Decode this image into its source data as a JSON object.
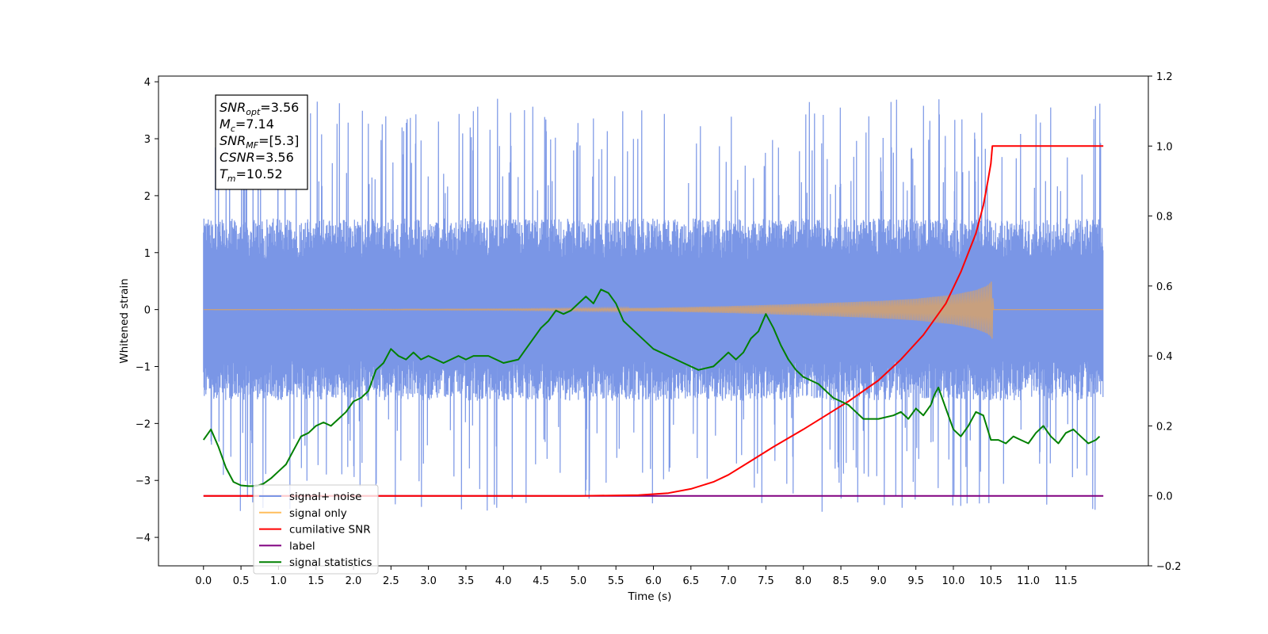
{
  "chart_data": {
    "type": "line",
    "title": "",
    "xlabel": "Time (s)",
    "ylabel": "Whitened strain",
    "ylabel_right": "",
    "xlim": [
      -0.6,
      12.6
    ],
    "ylim": [
      -4.5,
      4.1
    ],
    "ylim_right": [
      -0.2,
      1.2
    ],
    "x_ticks": [
      "0.0",
      "0.5",
      "1.0",
      "1.5",
      "2.0",
      "2.5",
      "3.0",
      "3.5",
      "4.0",
      "4.5",
      "5.0",
      "5.5",
      "6.0",
      "6.5",
      "7.0",
      "7.5",
      "8.0",
      "8.5",
      "9.0",
      "9.5",
      "10.0",
      "10.5",
      "11.0",
      "11.5"
    ],
    "y_ticks_left": [
      "−4",
      "−3",
      "−2",
      "−1",
      "0",
      "1",
      "2",
      "3",
      "4"
    ],
    "y_ticks_right": [
      "−0.2",
      "0.0",
      "0.2",
      "0.4",
      "0.6",
      "0.8",
      "1.0",
      "1.2"
    ],
    "grid": false,
    "legend_position": "lower-left",
    "info_box": {
      "lines": [
        {
          "label": "SNR",
          "sub": "opt",
          "value": "=3.56"
        },
        {
          "label": "M",
          "sub": "c",
          "value": "=7.14"
        },
        {
          "label": "SNR",
          "sub": "MF",
          "value": "=[5.3]"
        },
        {
          "label": "CSNR",
          "sub": "",
          "value": "=3.56"
        },
        {
          "label": "T",
          "sub": "m",
          "value": "=10.52"
        }
      ]
    },
    "series": [
      {
        "name": "signal+ noise",
        "color": "#7a96e6",
        "axis": "left",
        "description_stats": {
          "x_start": 0.0,
          "x_end": 12.0,
          "typical_min": -1.6,
          "typical_max": 1.6,
          "peak_min": -3.55,
          "peak_max": 3.72
        }
      },
      {
        "name": "signal only",
        "color": "#ffbe5c",
        "axis": "left",
        "envelope": {
          "x": [
            0.0,
            4.0,
            6.0,
            7.0,
            8.0,
            9.0,
            9.5,
            10.0,
            10.3,
            10.45,
            10.5,
            10.52,
            10.53
          ],
          "amplitude": [
            0.0,
            0.01,
            0.03,
            0.06,
            0.1,
            0.15,
            0.19,
            0.26,
            0.34,
            0.42,
            0.48,
            0.52,
            0.0
          ]
        }
      },
      {
        "name": "cumilative SNR",
        "color": "#ff0000",
        "axis": "right",
        "x": [
          0.0,
          5.0,
          5.8,
          6.2,
          6.5,
          6.8,
          7.0,
          7.3,
          7.6,
          8.0,
          8.3,
          8.6,
          9.0,
          9.3,
          9.6,
          9.9,
          10.1,
          10.3,
          10.4,
          10.46,
          10.5,
          10.52,
          12.0
        ],
        "values": [
          0.0,
          0.0,
          0.002,
          0.008,
          0.02,
          0.04,
          0.06,
          0.1,
          0.14,
          0.19,
          0.23,
          0.27,
          0.33,
          0.39,
          0.46,
          0.55,
          0.64,
          0.75,
          0.83,
          0.9,
          0.95,
          1.0,
          1.0
        ]
      },
      {
        "name": "label",
        "color": "#800080",
        "axis": "right",
        "x": [
          0.0,
          12.0
        ],
        "values": [
          0.0,
          0.0
        ]
      },
      {
        "name": "signal statistics",
        "color": "#008000",
        "axis": "right",
        "x": [
          0.0,
          0.1,
          0.2,
          0.3,
          0.4,
          0.5,
          0.6,
          0.7,
          0.8,
          0.9,
          1.0,
          1.1,
          1.2,
          1.3,
          1.4,
          1.5,
          1.6,
          1.7,
          1.8,
          1.9,
          2.0,
          2.1,
          2.2,
          2.3,
          2.4,
          2.5,
          2.6,
          2.7,
          2.8,
          2.9,
          3.0,
          3.2,
          3.4,
          3.5,
          3.6,
          3.8,
          4.0,
          4.2,
          4.3,
          4.4,
          4.5,
          4.6,
          4.7,
          4.8,
          4.9,
          5.0,
          5.1,
          5.2,
          5.3,
          5.4,
          5.5,
          5.6,
          5.8,
          6.0,
          6.2,
          6.4,
          6.6,
          6.8,
          6.9,
          7.0,
          7.1,
          7.2,
          7.3,
          7.4,
          7.5,
          7.6,
          7.7,
          7.8,
          7.9,
          8.0,
          8.2,
          8.3,
          8.4,
          8.5,
          8.6,
          8.7,
          8.8,
          9.0,
          9.2,
          9.3,
          9.4,
          9.5,
          9.6,
          9.7,
          9.75,
          9.8,
          9.9,
          10.0,
          10.1,
          10.2,
          10.3,
          10.4,
          10.5,
          10.6,
          10.7,
          10.8,
          10.9,
          11.0,
          11.1,
          11.2,
          11.3,
          11.4,
          11.5,
          11.6,
          11.7,
          11.8,
          11.9,
          11.95
        ],
        "values": [
          0.16,
          0.19,
          0.14,
          0.08,
          0.04,
          0.03,
          0.028,
          0.028,
          0.035,
          0.05,
          0.07,
          0.09,
          0.13,
          0.17,
          0.18,
          0.2,
          0.21,
          0.2,
          0.22,
          0.24,
          0.27,
          0.28,
          0.3,
          0.36,
          0.38,
          0.42,
          0.4,
          0.39,
          0.41,
          0.39,
          0.4,
          0.38,
          0.4,
          0.39,
          0.4,
          0.4,
          0.38,
          0.39,
          0.42,
          0.45,
          0.48,
          0.5,
          0.53,
          0.52,
          0.53,
          0.55,
          0.57,
          0.55,
          0.59,
          0.58,
          0.55,
          0.5,
          0.46,
          0.42,
          0.4,
          0.38,
          0.36,
          0.37,
          0.39,
          0.41,
          0.39,
          0.41,
          0.45,
          0.47,
          0.52,
          0.48,
          0.43,
          0.39,
          0.36,
          0.34,
          0.32,
          0.3,
          0.28,
          0.27,
          0.26,
          0.24,
          0.22,
          0.22,
          0.23,
          0.24,
          0.22,
          0.25,
          0.23,
          0.26,
          0.29,
          0.31,
          0.25,
          0.19,
          0.17,
          0.2,
          0.24,
          0.23,
          0.16,
          0.16,
          0.15,
          0.17,
          0.16,
          0.15,
          0.18,
          0.2,
          0.17,
          0.15,
          0.18,
          0.19,
          0.17,
          0.15,
          0.16,
          0.17
        ]
      }
    ]
  }
}
